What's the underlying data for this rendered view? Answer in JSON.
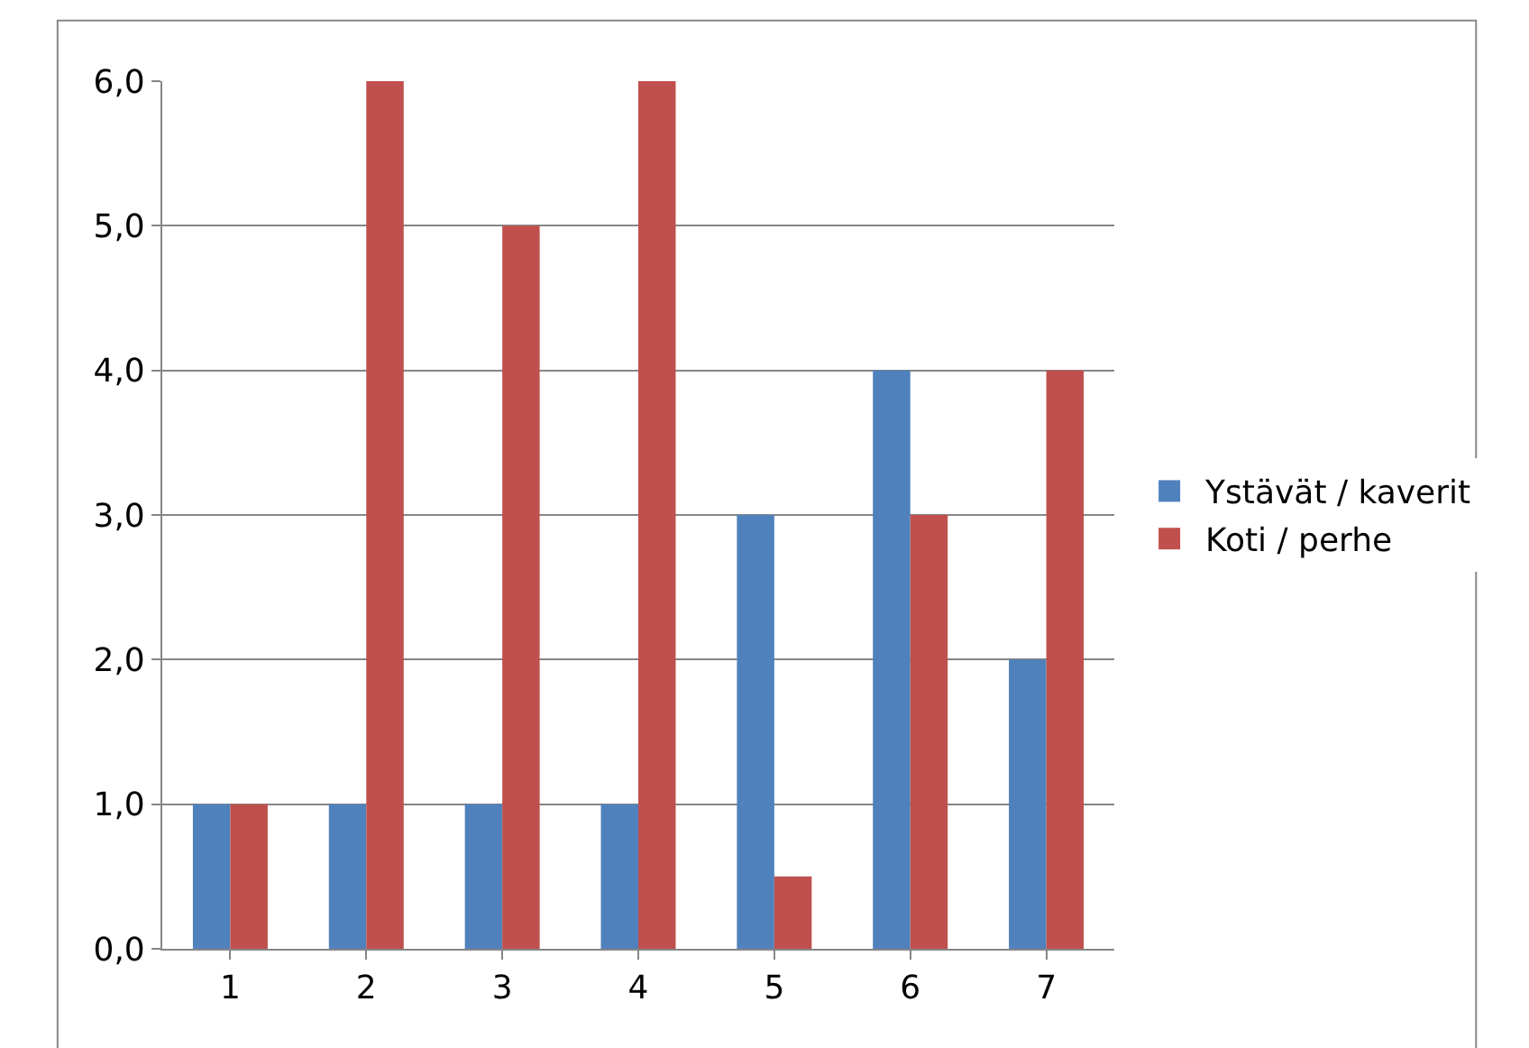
{
  "chart_data": {
    "type": "bar",
    "categories": [
      "1",
      "2",
      "3",
      "4",
      "5",
      "6",
      "7"
    ],
    "series": [
      {
        "name": "Ystävät / kaverit",
        "color": "#4f81bd",
        "values": [
          1,
          1,
          1,
          1,
          3,
          4,
          2
        ]
      },
      {
        "name": "Koti / perhe",
        "color": "#c0504d",
        "values": [
          1,
          6,
          5,
          6,
          0.5,
          3,
          4
        ]
      }
    ],
    "ylim": [
      0,
      6
    ],
    "yticks": [
      {
        "value": 0,
        "label": "0,0"
      },
      {
        "value": 1,
        "label": "1,0"
      },
      {
        "value": 2,
        "label": "2,0"
      },
      {
        "value": 3,
        "label": "3,0"
      },
      {
        "value": 4,
        "label": "4,0"
      },
      {
        "value": 5,
        "label": "5,0"
      },
      {
        "value": 6,
        "label": "6,0"
      }
    ],
    "grid": "y",
    "legend": "right"
  }
}
